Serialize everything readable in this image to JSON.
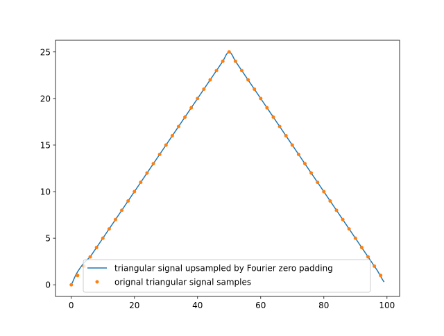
{
  "chart_data": {
    "type": "line",
    "title": "",
    "xlabel": "",
    "ylabel": "",
    "xlim": [
      -5,
      104
    ],
    "ylim": [
      -1.25,
      26.25
    ],
    "xticks": [
      0,
      20,
      40,
      60,
      80,
      100
    ],
    "yticks": [
      0,
      5,
      10,
      15,
      20,
      25
    ],
    "grid": false,
    "legend_position": "lower center",
    "series": [
      {
        "name": "triangular signal upsampled by Fourier zero padding",
        "kind": "line",
        "color": "#1f77b4",
        "x": [
          0,
          0.5,
          1,
          1.5,
          2,
          3,
          4,
          6,
          8,
          10,
          12,
          14,
          16,
          18,
          20,
          22,
          24,
          26,
          28,
          30,
          32,
          34,
          36,
          38,
          40,
          42,
          44,
          46,
          47,
          48,
          48.5,
          49,
          49.5,
          50,
          50.5,
          51,
          51.5,
          52,
          53,
          54,
          56,
          58,
          60,
          62,
          64,
          66,
          68,
          70,
          72,
          74,
          76,
          78,
          80,
          82,
          84,
          86,
          88,
          90,
          92,
          94,
          95,
          96,
          97,
          97.5,
          98,
          98.5,
          99
        ],
        "y": [
          0,
          0.35,
          0.75,
          1.1,
          1.4,
          1.9,
          2.35,
          3.0,
          4.0,
          5.0,
          6.0,
          7.0,
          8.0,
          9.0,
          10.0,
          11.0,
          12.0,
          13.0,
          14.0,
          15.0,
          16.0,
          17.0,
          18.0,
          19.0,
          20.0,
          21.0,
          22.0,
          23.0,
          23.5,
          24.0,
          24.3,
          24.65,
          24.9,
          25.0,
          24.9,
          24.65,
          24.3,
          24.0,
          23.5,
          23.0,
          22.0,
          21.0,
          20.0,
          19.0,
          18.0,
          17.0,
          16.0,
          15.0,
          14.0,
          13.0,
          12.0,
          11.0,
          10.0,
          9.0,
          8.0,
          7.0,
          6.0,
          5.0,
          4.0,
          3.0,
          2.5,
          2.0,
          1.5,
          1.2,
          0.9,
          0.6,
          0.35
        ]
      },
      {
        "name": "orignal triangular signal samples",
        "kind": "scatter",
        "color": "#ff7f0e",
        "x": [
          0,
          2,
          4,
          6,
          8,
          10,
          12,
          14,
          16,
          18,
          20,
          22,
          24,
          26,
          28,
          30,
          32,
          34,
          36,
          38,
          40,
          42,
          44,
          46,
          48,
          50,
          52,
          54,
          56,
          58,
          60,
          62,
          64,
          66,
          68,
          70,
          72,
          74,
          76,
          78,
          80,
          82,
          84,
          86,
          88,
          90,
          92,
          94,
          96,
          98
        ],
        "y": [
          0,
          1,
          2,
          3,
          4,
          5,
          6,
          7,
          8,
          9,
          10,
          11,
          12,
          13,
          14,
          15,
          16,
          17,
          18,
          19,
          20,
          21,
          22,
          23,
          24,
          25,
          24,
          23,
          22,
          21,
          20,
          19,
          18,
          17,
          16,
          15,
          14,
          13,
          12,
          11,
          10,
          9,
          8,
          7,
          6,
          5,
          4,
          3,
          2,
          1
        ]
      }
    ]
  }
}
